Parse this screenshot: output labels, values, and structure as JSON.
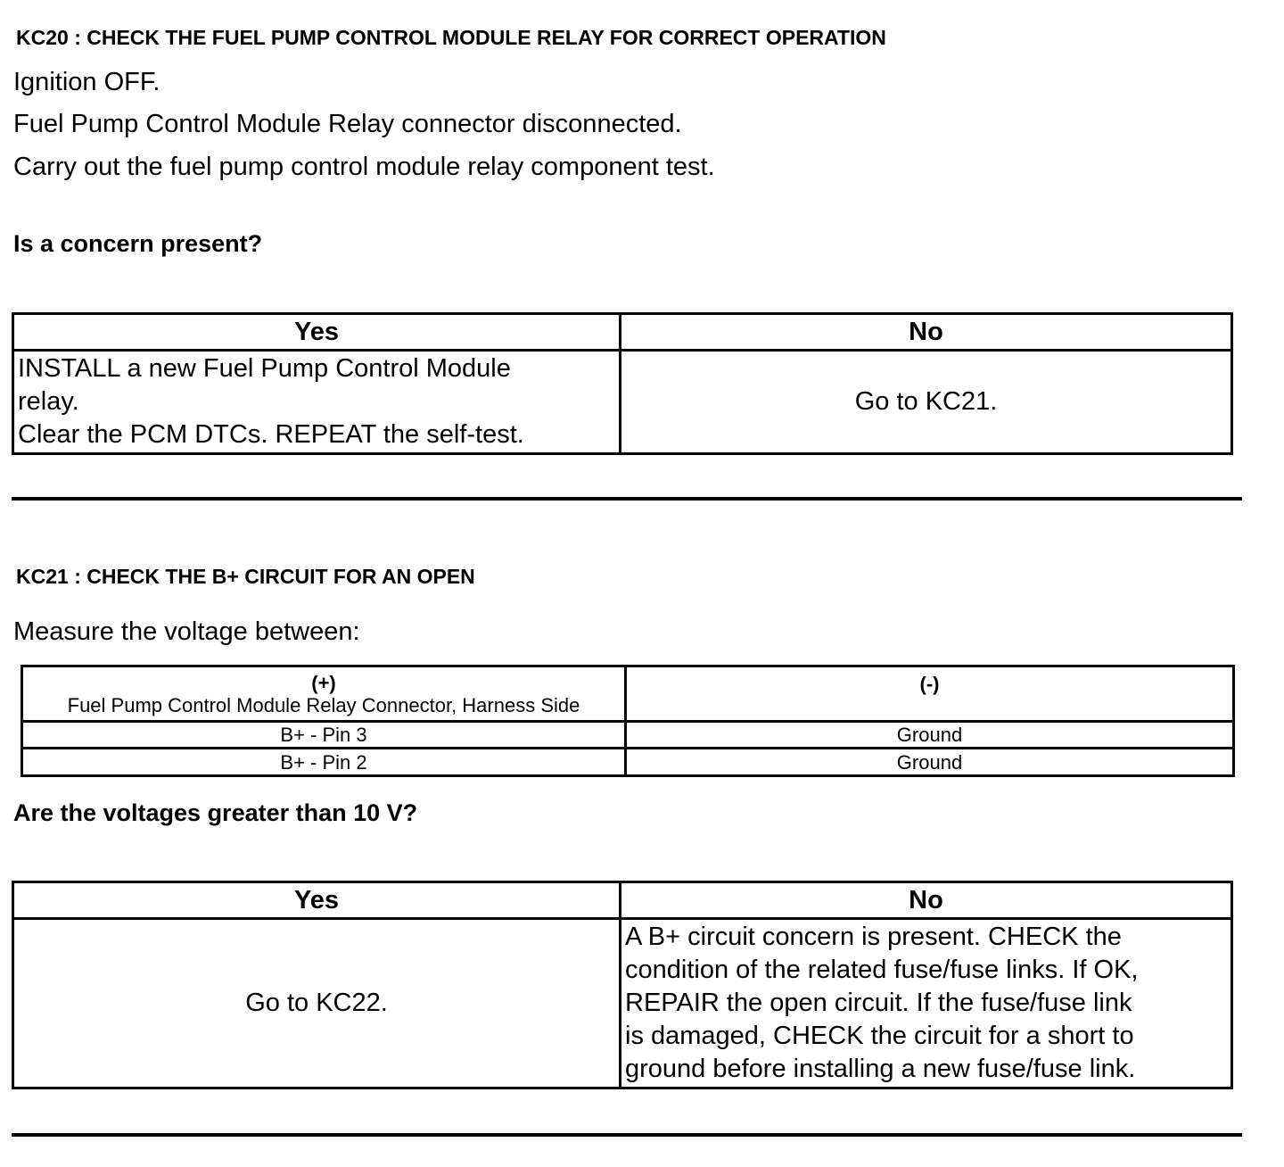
{
  "kc20": {
    "heading": "KC20 : CHECK THE FUEL PUMP CONTROL MODULE RELAY FOR CORRECT OPERATION",
    "steps": [
      "Ignition OFF.",
      "Fuel Pump Control Module Relay connector disconnected.",
      "Carry out the fuel pump control module relay component test."
    ],
    "question": "Is a concern present?",
    "table": {
      "yes_header": "Yes",
      "no_header": "No",
      "yes_lines": [
        "INSTALL a new Fuel Pump Control Module",
        "relay.",
        "Clear the PCM DTCs. REPEAT the self-test."
      ],
      "no_text": "Go to KC21."
    }
  },
  "kc21": {
    "heading": "KC21 : CHECK THE B+ CIRCUIT FOR AN OPEN",
    "instruction": "Measure the voltage between:",
    "measure_table": {
      "pos_header": "(+)",
      "pos_subheader": "Fuel Pump Control Module Relay Connector, Harness Side",
      "neg_header": "(-)",
      "rows": [
        {
          "pos": "B+ - Pin 3",
          "neg": "Ground"
        },
        {
          "pos": "B+ - Pin 2",
          "neg": "Ground"
        }
      ]
    },
    "question": "Are the voltages greater than 10 V?",
    "table": {
      "yes_header": "Yes",
      "no_header": "No",
      "yes_text": "Go to KC22.",
      "no_lines": [
        "A B+ circuit concern is present. CHECK the",
        "condition of the related fuse/fuse links. If OK,",
        "REPAIR the open circuit. If the fuse/fuse link",
        "is damaged, CHECK the circuit for a short to",
        "ground before installing a new fuse/fuse link."
      ]
    }
  }
}
